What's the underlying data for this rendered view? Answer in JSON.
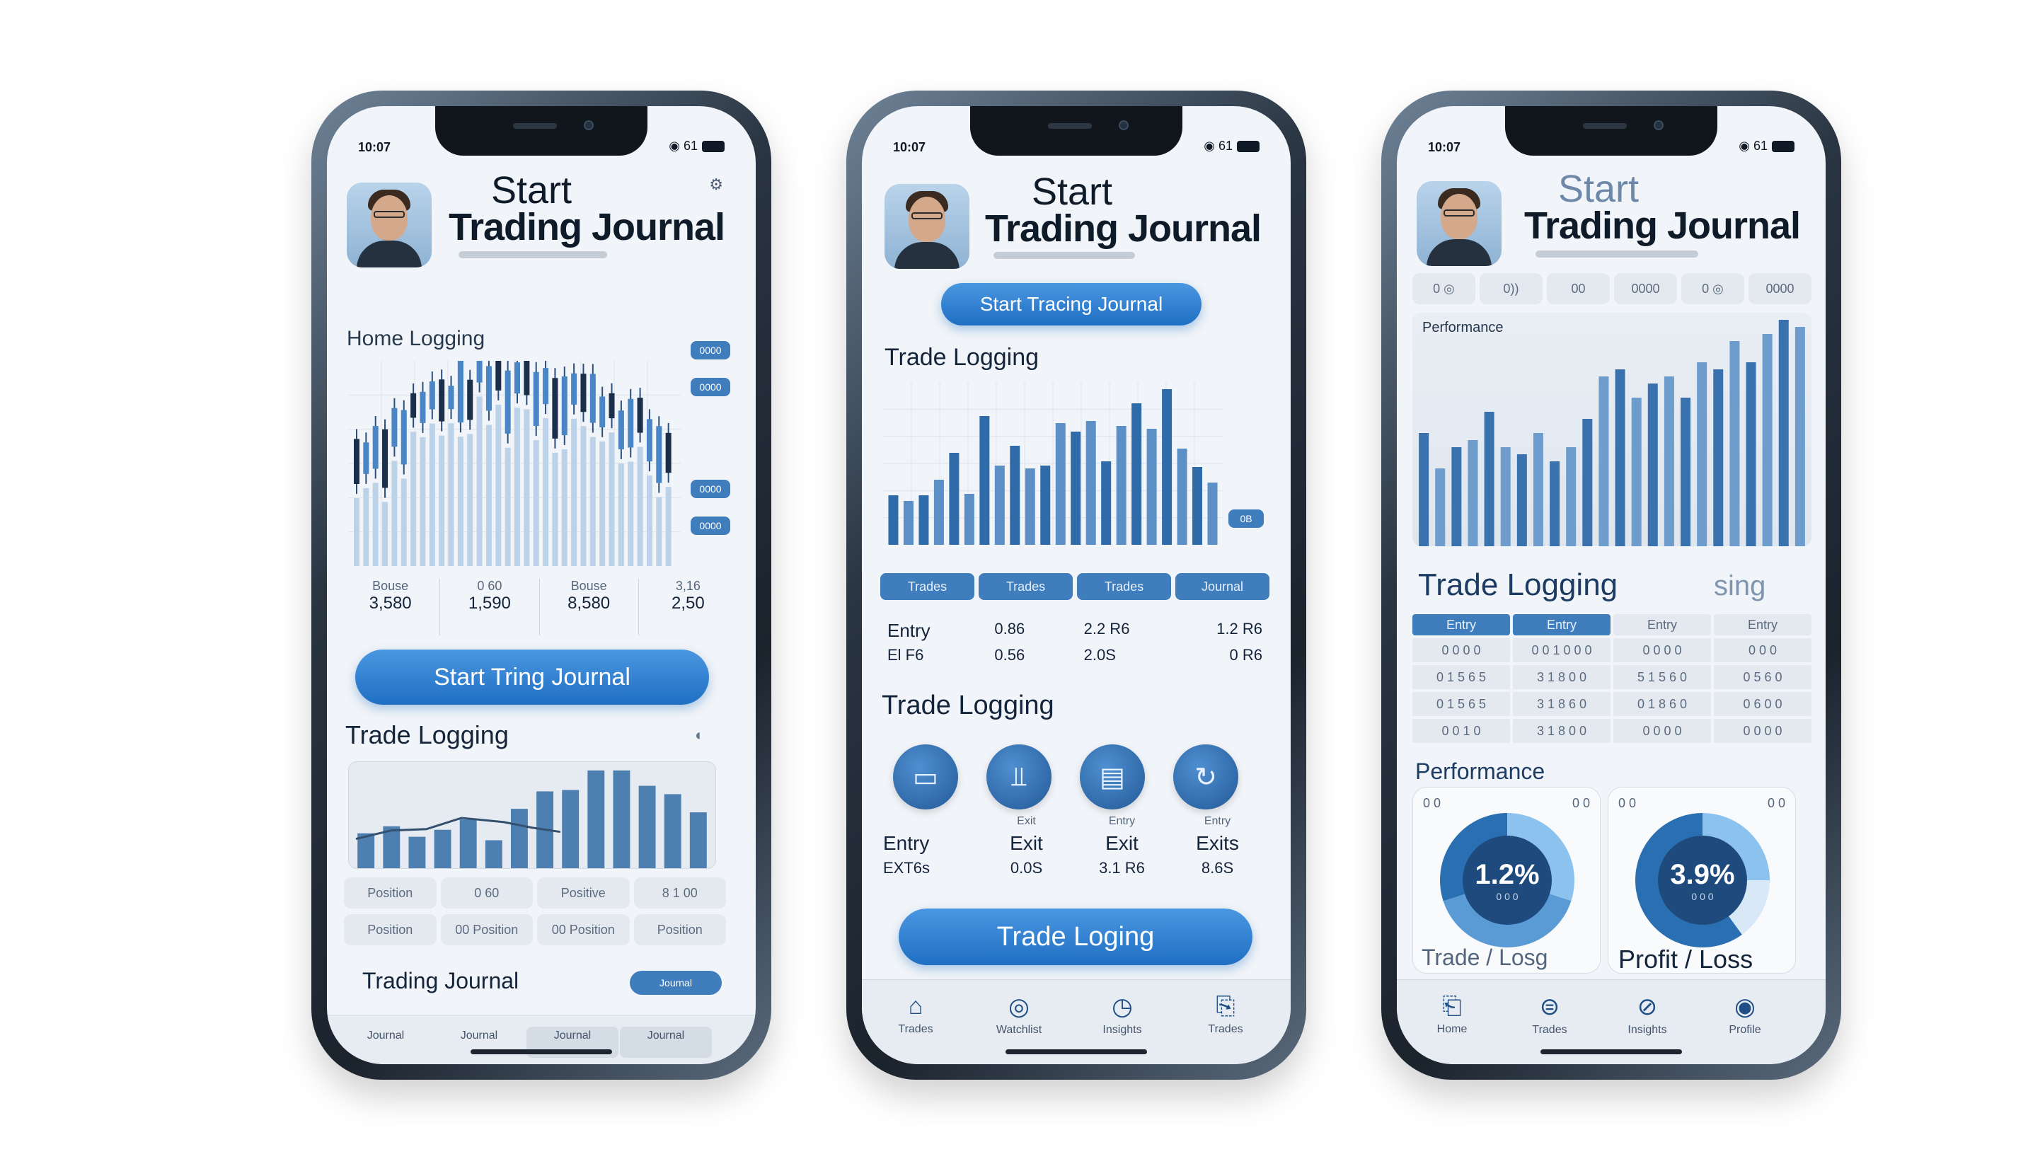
{
  "phone1": {
    "status_time": "10:07",
    "status_signal": "◉ 61",
    "title_line1": "Start",
    "title_line2": "Trading Journal",
    "chart_label": "Home Logging",
    "stats": [
      {
        "label": "Bouse",
        "value": "3,580"
      },
      {
        "label": "0 60",
        "value": "1,590"
      },
      {
        "label": "Bouse",
        "value": "8,580"
      },
      {
        "label": "3,16",
        "value": "2,50"
      }
    ],
    "primary_button": "Start Tring Journal",
    "section_trade": "Trade Logging",
    "table_rows": [
      [
        "Position",
        "0 60",
        "Positive",
        "8 1 00"
      ],
      [
        "Position",
        "00 Position",
        "00 Position",
        "Position"
      ]
    ],
    "section_journal": "Trading Journal",
    "journal_tag": "Journal",
    "tabs": [
      "Journal",
      "Journal",
      "Journal",
      "Journal"
    ]
  },
  "phone2": {
    "status_time": "10:07",
    "status_signal": "◉ 61",
    "title_line1": "Start",
    "title_line2": "Trading Journal",
    "top_button": "Start Tracing Journal",
    "section_chart": "Trade Logging",
    "chips": [
      "Trades",
      "Trades",
      "Trades",
      "Journal"
    ],
    "entries": [
      {
        "name": "Entry",
        "a": "0.86",
        "b": "2.2 R6",
        "c": "1.2 R6"
      },
      {
        "name": "El F6",
        "a": "0.56",
        "b": "2.0S",
        "c": "0 R6"
      }
    ],
    "section_logging": "Trade Logging",
    "icon_labels": [
      "",
      "Exit",
      "Entry",
      "Entry"
    ],
    "icon_rows": [
      [
        "Entry",
        "Exit",
        "Exit",
        "Exits"
      ],
      [
        "EXT6s",
        "0.0S",
        "3.1 R6",
        "8.6S"
      ]
    ],
    "primary_button": "Trade Loging",
    "tabs": [
      "Trades",
      "Watchlist",
      "Insights",
      "Trades"
    ]
  },
  "phone3": {
    "status_time": "10:07",
    "status_signal": "◉ 61",
    "title_line1": "Start",
    "title_line2": "Trading Journal",
    "filter_chips": [
      "0 ◎",
      "0))",
      "00",
      "0000",
      "0 ◎",
      "0000"
    ],
    "chart_label": "Performance",
    "section_trade": "Trade Logging",
    "section_trade_ghost": "sing",
    "table_header": [
      "Entry",
      "Entry",
      "Entry",
      "Entry"
    ],
    "table_rows": [
      [
        "0 0 0 0",
        "0 0 1 0 0 0",
        "0 0 0 0",
        "0 0 0"
      ],
      [
        "0 1 5 6 5",
        "3 1 8 0 0",
        "5 1 5 6 0",
        "0 5 6 0"
      ],
      [
        "0 1 5 6 5",
        "3 1 8 6 0",
        "0 1 8 6 0",
        "0 6 0 0"
      ],
      [
        "0 0 1 0",
        "3 1 8 0 0",
        "0 0 0 0",
        "0 0 0 0"
      ]
    ],
    "performance_label": "Performance",
    "cards": [
      {
        "corner_left": "0 0",
        "corner_right": "0 0",
        "value": "1.2%",
        "sub": "0 0 0",
        "caption": "Trade / Losg"
      },
      {
        "corner_left": "0 0",
        "corner_right": "0 0",
        "value": "3.9%",
        "sub": "0 0 0",
        "caption": "Profit / Loss"
      }
    ],
    "tabs": [
      "Home",
      "Trades",
      "Insights",
      "Profile"
    ]
  },
  "colors": {
    "accent": "#2f78c8",
    "dark_navy": "#1f4a7e",
    "screen_bg": "#f1f4f8"
  }
}
